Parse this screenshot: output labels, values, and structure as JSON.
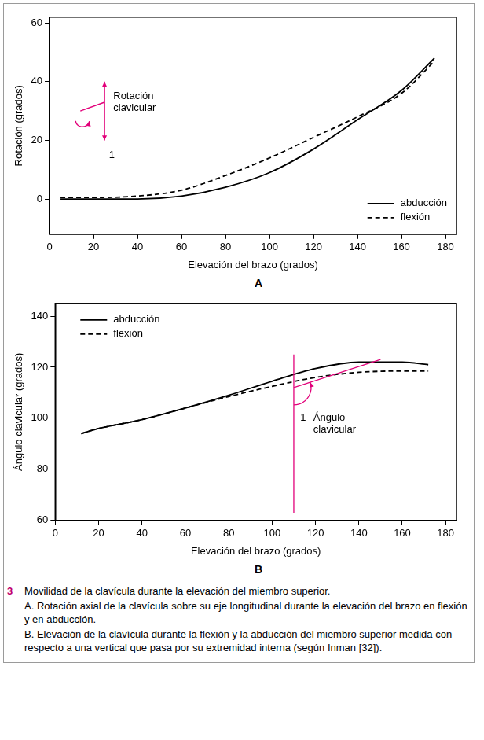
{
  "chart_data": [
    {
      "type": "line",
      "panel": "A",
      "x_label": "Elevación del brazo (grados)",
      "y_label": "Rotación (grados)",
      "x": [
        5,
        20,
        40,
        60,
        80,
        100,
        120,
        140,
        160,
        175
      ],
      "series": [
        {
          "name": "abducción",
          "color": "#000000",
          "line_style": "solid",
          "values": [
            0,
            0,
            0,
            1,
            4,
            9,
            17,
            27,
            37,
            48
          ]
        },
        {
          "name": "flexión",
          "color": "#000000",
          "line_style": "dashed",
          "values": [
            0.5,
            0.5,
            1,
            3,
            8,
            14,
            21,
            28,
            36,
            47
          ]
        }
      ],
      "xlim": [
        0,
        185
      ],
      "xticks": [
        0,
        20,
        40,
        60,
        80,
        100,
        120,
        140,
        160,
        180
      ],
      "ylim": [
        -12,
        62
      ],
      "yticks": [
        0,
        20,
        40,
        60
      ],
      "grid": false,
      "legend": "bottom-right",
      "annotations": [
        {
          "text": "Rotación clavicular"
        },
        {
          "text": "1"
        }
      ]
    },
    {
      "type": "line",
      "panel": "B",
      "x_label": "Elevación del brazo (grados)",
      "y_label": "Ángulo clavicular (grados)",
      "x": [
        12,
        20,
        40,
        60,
        80,
        100,
        120,
        140,
        160,
        172
      ],
      "series": [
        {
          "name": "abducción",
          "color": "#000000",
          "line_style": "solid",
          "values": [
            94,
            96,
            99.5,
            104,
            109,
            114.5,
            119.5,
            122,
            122,
            121
          ]
        },
        {
          "name": "flexión",
          "color": "#000000",
          "line_style": "dashed",
          "values": [
            94,
            96,
            99.5,
            104,
            108.5,
            112.5,
            116,
            118,
            118.5,
            118.5
          ]
        }
      ],
      "xlim": [
        0,
        185
      ],
      "xticks": [
        0,
        20,
        40,
        60,
        80,
        100,
        120,
        140,
        160,
        180
      ],
      "ylim": [
        60,
        145
      ],
      "yticks": [
        60,
        80,
        100,
        120,
        140
      ],
      "grid": false,
      "legend": "top-left",
      "annotations": [
        {
          "text": "1"
        },
        {
          "text": "Ángulo clavicular"
        }
      ]
    }
  ],
  "caption": {
    "number": "3",
    "paragraphs": [
      "Movilidad de la clavícula durante la elevación del miembro superior.",
      "A. Rotación axial de la clavícula sobre su eje longitudinal durante la elevación del brazo en flexión y en abducción.",
      "B. Elevación de la clavícula durante la flexión y la abducción del miembro superior medida con respecto a una vertical que pasa por su extremidad interna (según Inman [32])."
    ]
  }
}
